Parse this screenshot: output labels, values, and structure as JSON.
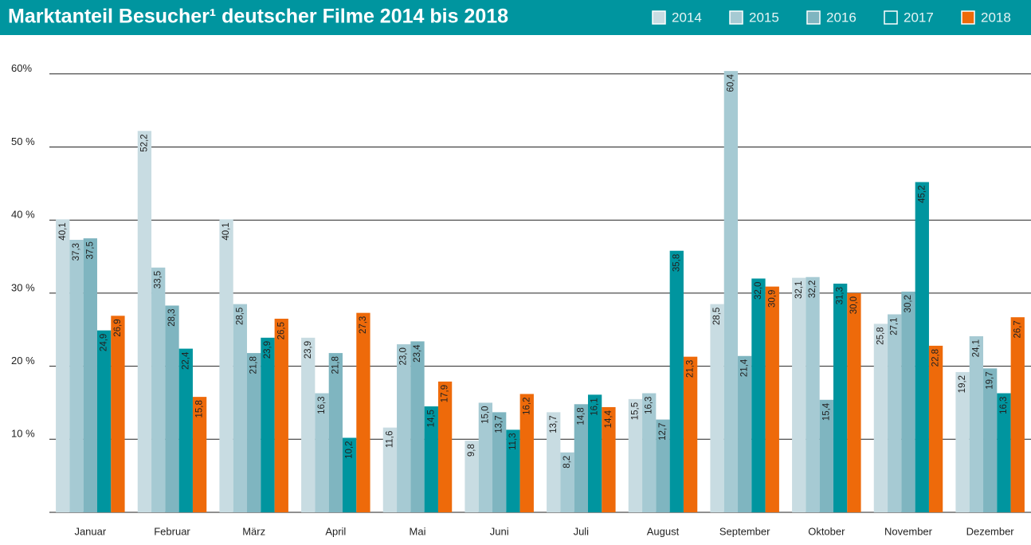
{
  "chart_data": {
    "type": "bar",
    "title": "Marktanteil Besucher¹ deutscher Filme 2014 bis 2018",
    "categories": [
      "Januar",
      "Februar",
      "März",
      "April",
      "Mai",
      "Juni",
      "Juli",
      "August",
      "September",
      "Oktober",
      "November",
      "Dezember"
    ],
    "series": [
      {
        "name": "2014",
        "color": "#c8dce2",
        "values": [
          40.1,
          52.2,
          40.1,
          23.9,
          11.6,
          9.8,
          13.7,
          15.5,
          28.5,
          32.1,
          25.8,
          19.2
        ],
        "value_labels": [
          "40,1",
          "52,2",
          "40,1",
          "23,9",
          "11,6",
          "9,8",
          "13,7",
          "15,5",
          "28,5",
          "32,1",
          "25,8",
          "19,2"
        ]
      },
      {
        "name": "2015",
        "color": "#a6cad3",
        "values": [
          37.3,
          33.5,
          28.5,
          16.3,
          23.0,
          15.0,
          8.2,
          16.3,
          60.4,
          32.2,
          27.1,
          24.1
        ],
        "value_labels": [
          "37,3",
          "33,5",
          "28,5",
          "16,3",
          "23,0",
          "15,0",
          "8,2",
          "16,3",
          "60,4",
          "32,2",
          "27,1",
          "24,1"
        ]
      },
      {
        "name": "2016",
        "color": "#7fb5c0",
        "values": [
          37.5,
          28.3,
          21.8,
          21.8,
          23.4,
          13.7,
          14.8,
          12.7,
          21.4,
          15.4,
          30.2,
          19.7
        ],
        "value_labels": [
          "37,5",
          "28,3",
          "21,8",
          "21,8",
          "23,4",
          "13,7",
          "14,8",
          "12,7",
          "21,4",
          "15,4",
          "30,2",
          "19,7"
        ]
      },
      {
        "name": "2017",
        "color": "#00959f",
        "values": [
          24.9,
          22.4,
          23.9,
          10.2,
          14.5,
          11.3,
          16.1,
          35.8,
          32.0,
          31.3,
          45.2,
          16.3
        ],
        "value_labels": [
          "24,9",
          "22,4",
          "23,9",
          "10,2",
          "14,5",
          "11,3",
          "16,1",
          "35,8",
          "32,0",
          "31,3",
          "45,2",
          "16,3"
        ]
      },
      {
        "name": "2018",
        "color": "#ee6a0a",
        "values": [
          26.9,
          15.8,
          26.5,
          27.3,
          17.9,
          16.2,
          14.4,
          21.3,
          30.9,
          30.0,
          22.8,
          26.7
        ],
        "value_labels": [
          "26,9",
          "15,8",
          "26,5",
          "27,3",
          "17,9",
          "16,2",
          "14,4",
          "21,3",
          "30,9",
          "30,0",
          "22,8",
          "26,7"
        ]
      }
    ],
    "ylim": [
      0,
      62
    ],
    "yticks": [
      {
        "value": 10,
        "label": "10 %"
      },
      {
        "value": 20,
        "label": "20 %"
      },
      {
        "value": 30,
        "label": "30 %"
      },
      {
        "value": 40,
        "label": "40 %"
      },
      {
        "value": 50,
        "label": "50 %"
      },
      {
        "value": 60,
        "label": "60%"
      }
    ],
    "grid": true
  }
}
